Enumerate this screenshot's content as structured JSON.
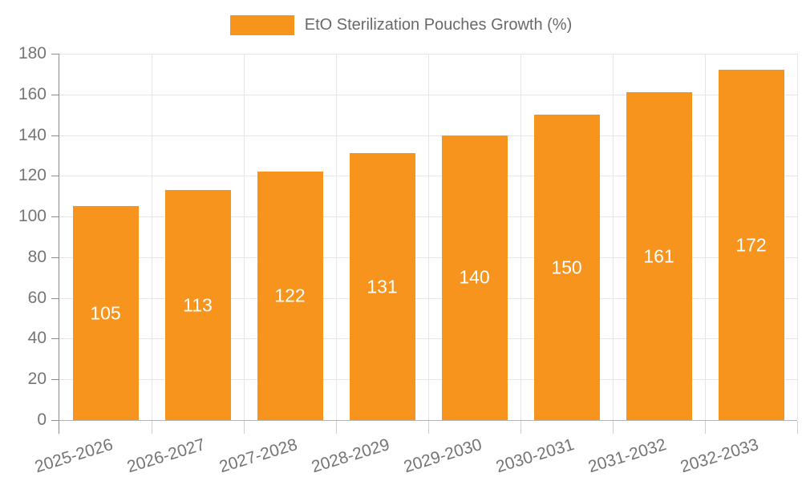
{
  "legend": {
    "label": "EtO Sterilization Pouches Growth (%)"
  },
  "chart_data": {
    "type": "bar",
    "title": "",
    "categories": [
      "2025-2026",
      "2026-2027",
      "2027-2028",
      "2028-2029",
      "2029-2030",
      "2030-2031",
      "2031-2032",
      "2032-2033"
    ],
    "series": [
      {
        "name": "EtO Sterilization Pouches Growth (%)",
        "values": [
          105,
          113,
          122,
          131,
          140,
          150,
          161,
          172
        ]
      }
    ],
    "xlabel": "",
    "ylabel": "",
    "ylim": [
      0,
      180
    ],
    "yticks": [
      0,
      20,
      40,
      60,
      80,
      100,
      120,
      140,
      160,
      180
    ],
    "grid": true,
    "legend_position": "top-center",
    "colors": {
      "bar": "#f6941e",
      "grid": "#e6e6e6",
      "axis_y": "#8c8c8c",
      "axis_x": "#b3b3b3",
      "boundary_tick": "#cfcfcf",
      "tick_label": "#757575",
      "legend_label": "#696969",
      "value_label": "#ffffff"
    }
  }
}
